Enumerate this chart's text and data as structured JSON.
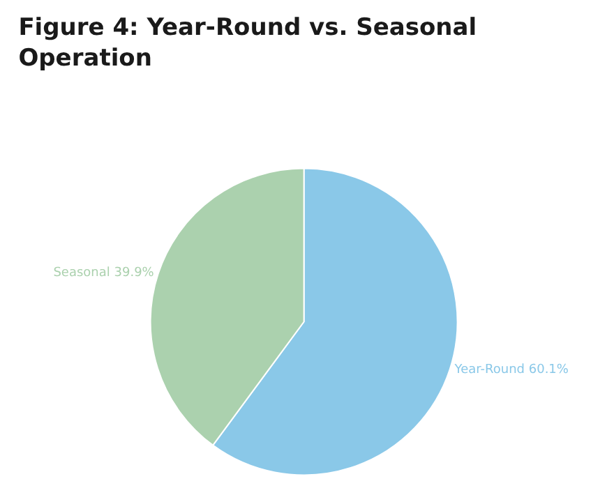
{
  "chart_data": {
    "type": "pie",
    "title": "Figure 4: Year-Round vs. Seasonal Operation",
    "categories": [
      "Year-Round",
      "Seasonal"
    ],
    "values": [
      60.1,
      39.9
    ],
    "value_labels": [
      "60.1%",
      "39.9%"
    ],
    "colors": [
      "#8ac8e8",
      "#abd1ae"
    ],
    "legend": false
  }
}
